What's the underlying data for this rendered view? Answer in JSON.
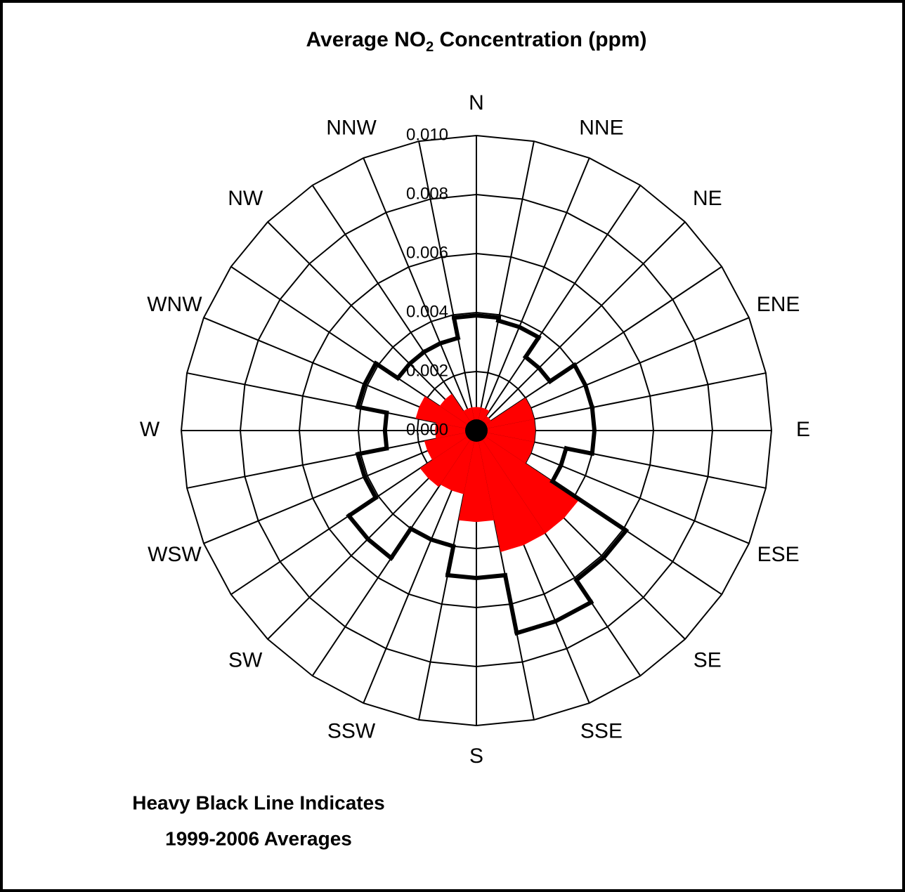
{
  "chart_data": {
    "type": "polar",
    "title_parts": [
      "Average NO",
      "2",
      " Concentration (ppm)"
    ],
    "annotation": [
      "Heavy Black Line Indicates",
      "1999-2006 Averages"
    ],
    "categories": [
      "N",
      "NNE",
      "NE",
      "ENE",
      "E",
      "ESE",
      "SE",
      "SSE",
      "S",
      "SSW",
      "SW",
      "WSW",
      "W",
      "WNW",
      "NW",
      "NNW"
    ],
    "series": [
      {
        "color": "#ff0000",
        "style": "wedge",
        "values": [
          0.0008,
          0.0008,
          0.0006,
          0.002,
          0.002,
          0.002,
          0.0042,
          0.0042,
          0.0031,
          0.0022,
          0.0023,
          0.0018,
          0.0014,
          0.0021,
          0.0015,
          0.0008
        ]
      },
      {
        "color": "#000000",
        "style": "outline",
        "values": [
          0.0039,
          0.0038,
          0.003,
          0.004,
          0.004,
          0.0031,
          0.0061,
          0.007,
          0.005,
          0.004,
          0.0052,
          0.0041,
          0.0031,
          0.0041,
          0.0032,
          0.0032
        ]
      }
    ],
    "ylim": [
      0,
      0.01
    ],
    "yticks": [
      {
        "value": 0,
        "label": "0.000"
      },
      0.002,
      0.004,
      0.006,
      0.008,
      {
        "value": 0.01,
        "label": "0.010"
      }
    ],
    "grid": true
  }
}
